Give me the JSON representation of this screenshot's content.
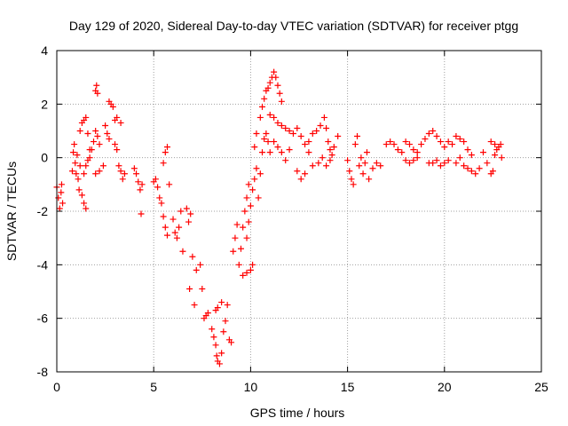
{
  "chart_data": {
    "type": "scatter",
    "title": "Day 129 of 2020, Sidereal Day-to-day VTEC variation (SDTVAR) for receiver ptgg",
    "xlabel": "GPS time / hours",
    "ylabel": "SDTVAR / TECUs",
    "xlim": [
      0,
      25
    ],
    "ylim": [
      -8,
      4
    ],
    "xticks": [
      0,
      5,
      10,
      15,
      20,
      25
    ],
    "yticks": [
      -8,
      -6,
      -4,
      -2,
      0,
      2,
      4
    ],
    "grid": true,
    "marker": "+",
    "series": [
      {
        "name": "SDTVAR",
        "color": "#ff0000",
        "points": [
          [
            0.0,
            -1.1
          ],
          [
            0.08,
            -1.5
          ],
          [
            0.15,
            -1.9
          ],
          [
            0.22,
            -1.3
          ],
          [
            0.25,
            -1.0
          ],
          [
            0.3,
            -1.7
          ],
          [
            0.8,
            -0.5
          ],
          [
            0.85,
            0.2
          ],
          [
            0.9,
            0.5
          ],
          [
            0.95,
            -0.2
          ],
          [
            1.0,
            -0.6
          ],
          [
            1.05,
            0.1
          ],
          [
            1.1,
            -0.8
          ],
          [
            1.15,
            -1.2
          ],
          [
            1.2,
            -0.3
          ],
          [
            1.3,
            -1.4
          ],
          [
            1.4,
            -1.7
          ],
          [
            1.5,
            -1.9
          ],
          [
            1.2,
            1.0
          ],
          [
            1.3,
            1.3
          ],
          [
            1.4,
            1.4
          ],
          [
            1.5,
            1.5
          ],
          [
            1.6,
            0.9
          ],
          [
            1.7,
            0.3
          ],
          [
            1.4,
            -0.6
          ],
          [
            1.5,
            -0.3
          ],
          [
            1.6,
            -0.1
          ],
          [
            1.7,
            0.0
          ],
          [
            1.8,
            0.3
          ],
          [
            1.9,
            0.6
          ],
          [
            2.0,
            2.5
          ],
          [
            2.05,
            2.7
          ],
          [
            2.1,
            2.4
          ],
          [
            2.0,
            1.0
          ],
          [
            2.1,
            0.8
          ],
          [
            2.2,
            0.5
          ],
          [
            2.0,
            -0.6
          ],
          [
            2.2,
            -0.5
          ],
          [
            2.4,
            -0.3
          ],
          [
            2.5,
            1.2
          ],
          [
            2.6,
            0.9
          ],
          [
            2.7,
            0.7
          ],
          [
            2.7,
            2.1
          ],
          [
            2.8,
            2.0
          ],
          [
            2.9,
            1.9
          ],
          [
            3.0,
            0.5
          ],
          [
            3.1,
            0.3
          ],
          [
            3.2,
            -0.3
          ],
          [
            3.0,
            1.4
          ],
          [
            3.1,
            1.5
          ],
          [
            3.3,
            1.3
          ],
          [
            3.3,
            -0.5
          ],
          [
            3.4,
            -0.8
          ],
          [
            3.5,
            -0.6
          ],
          [
            4.0,
            -0.4
          ],
          [
            4.1,
            -0.6
          ],
          [
            4.2,
            -0.9
          ],
          [
            4.3,
            -1.2
          ],
          [
            4.35,
            -2.1
          ],
          [
            4.4,
            -1.0
          ],
          [
            5.0,
            -0.9
          ],
          [
            5.1,
            -0.8
          ],
          [
            5.2,
            -1.1
          ],
          [
            5.3,
            -1.5
          ],
          [
            5.4,
            -1.7
          ],
          [
            5.5,
            -2.2
          ],
          [
            5.5,
            -0.2
          ],
          [
            5.6,
            0.2
          ],
          [
            5.7,
            0.4
          ],
          [
            5.6,
            -2.6
          ],
          [
            5.7,
            -2.9
          ],
          [
            5.8,
            -1.0
          ],
          [
            6.0,
            -2.3
          ],
          [
            6.1,
            -2.8
          ],
          [
            6.2,
            -3.0
          ],
          [
            6.3,
            -2.6
          ],
          [
            6.4,
            -2.0
          ],
          [
            6.5,
            -3.5
          ],
          [
            6.7,
            -1.9
          ],
          [
            6.8,
            -2.4
          ],
          [
            6.9,
            -2.1
          ],
          [
            6.85,
            -4.9
          ],
          [
            7.0,
            -3.7
          ],
          [
            7.1,
            -5.5
          ],
          [
            7.2,
            -4.2
          ],
          [
            7.4,
            -4.0
          ],
          [
            7.5,
            -4.9
          ],
          [
            7.6,
            -6.0
          ],
          [
            7.7,
            -5.9
          ],
          [
            7.8,
            -5.8
          ],
          [
            8.0,
            -6.4
          ],
          [
            8.1,
            -6.7
          ],
          [
            8.2,
            -7.0
          ],
          [
            8.25,
            -7.4
          ],
          [
            8.3,
            -7.6
          ],
          [
            8.4,
            -7.7
          ],
          [
            8.5,
            -7.3
          ],
          [
            8.6,
            -6.5
          ],
          [
            8.7,
            -6.1
          ],
          [
            8.8,
            -5.5
          ],
          [
            8.9,
            -6.8
          ],
          [
            9.0,
            -6.9
          ],
          [
            8.2,
            -5.7
          ],
          [
            8.3,
            -5.6
          ],
          [
            8.5,
            -5.4
          ],
          [
            9.1,
            -3.5
          ],
          [
            9.2,
            -3.0
          ],
          [
            9.3,
            -2.5
          ],
          [
            9.4,
            -4.0
          ],
          [
            9.5,
            -3.4
          ],
          [
            9.6,
            -2.6
          ],
          [
            9.7,
            -2.0
          ],
          [
            9.8,
            -1.5
          ],
          [
            9.9,
            -1.0
          ],
          [
            9.6,
            -4.4
          ],
          [
            9.8,
            -4.3
          ],
          [
            10.0,
            -4.2
          ],
          [
            10.1,
            -4.0
          ],
          [
            9.8,
            -3.0
          ],
          [
            9.9,
            -2.4
          ],
          [
            10.0,
            -1.8
          ],
          [
            10.1,
            -1.2
          ],
          [
            10.2,
            -0.8
          ],
          [
            10.3,
            -0.4
          ],
          [
            10.2,
            0.4
          ],
          [
            10.3,
            0.9
          ],
          [
            10.4,
            -1.5
          ],
          [
            10.5,
            -0.6
          ],
          [
            10.6,
            0.2
          ],
          [
            10.7,
            0.7
          ],
          [
            10.8,
            0.9
          ],
          [
            10.9,
            0.6
          ],
          [
            10.5,
            1.5
          ],
          [
            10.6,
            1.9
          ],
          [
            10.7,
            2.2
          ],
          [
            10.8,
            2.5
          ],
          [
            10.9,
            2.6
          ],
          [
            11.0,
            2.8
          ],
          [
            11.1,
            3.0
          ],
          [
            11.2,
            3.2
          ],
          [
            11.3,
            3.0
          ],
          [
            11.4,
            2.7
          ],
          [
            11.5,
            2.4
          ],
          [
            11.6,
            2.1
          ],
          [
            11.0,
            1.6
          ],
          [
            11.2,
            1.5
          ],
          [
            11.4,
            1.3
          ],
          [
            11.6,
            1.2
          ],
          [
            11.8,
            1.1
          ],
          [
            12.0,
            1.0
          ],
          [
            11.0,
            0.2
          ],
          [
            11.2,
            0.6
          ],
          [
            11.4,
            0.4
          ],
          [
            11.6,
            0.2
          ],
          [
            11.8,
            -0.1
          ],
          [
            12.0,
            0.3
          ],
          [
            12.2,
            0.9
          ],
          [
            12.4,
            1.1
          ],
          [
            12.6,
            0.8
          ],
          [
            12.8,
            0.5
          ],
          [
            13.0,
            0.2
          ],
          [
            13.2,
            -0.3
          ],
          [
            12.4,
            -0.5
          ],
          [
            12.6,
            -0.8
          ],
          [
            12.8,
            -0.6
          ],
          [
            13.0,
            0.6
          ],
          [
            13.2,
            0.9
          ],
          [
            13.4,
            1.0
          ],
          [
            13.6,
            1.2
          ],
          [
            13.8,
            1.5
          ],
          [
            13.9,
            1.1
          ],
          [
            14.0,
            0.6
          ],
          [
            14.1,
            0.3
          ],
          [
            14.2,
            0.1
          ],
          [
            13.5,
            -0.2
          ],
          [
            13.7,
            0.0
          ],
          [
            13.9,
            -0.3
          ],
          [
            14.1,
            -0.1
          ],
          [
            14.3,
            0.4
          ],
          [
            14.5,
            0.8
          ],
          [
            15.0,
            -0.1
          ],
          [
            15.1,
            -0.5
          ],
          [
            15.2,
            -0.8
          ],
          [
            15.3,
            -1.0
          ],
          [
            15.4,
            0.5
          ],
          [
            15.5,
            0.8
          ],
          [
            15.6,
            -0.3
          ],
          [
            15.7,
            0.0
          ],
          [
            15.8,
            -0.6
          ],
          [
            15.9,
            -0.2
          ],
          [
            16.0,
            0.2
          ],
          [
            16.1,
            -0.8
          ],
          [
            16.3,
            -0.4
          ],
          [
            16.5,
            -0.2
          ],
          [
            16.7,
            -0.3
          ],
          [
            17.0,
            0.5
          ],
          [
            17.2,
            0.6
          ],
          [
            17.4,
            0.5
          ],
          [
            17.6,
            0.3
          ],
          [
            17.8,
            0.2
          ],
          [
            18.0,
            0.6
          ],
          [
            18.2,
            0.5
          ],
          [
            18.4,
            0.3
          ],
          [
            18.6,
            0.2
          ],
          [
            18.0,
            -0.1
          ],
          [
            18.2,
            -0.2
          ],
          [
            18.4,
            -0.1
          ],
          [
            18.6,
            0.0
          ],
          [
            18.8,
            0.5
          ],
          [
            19.0,
            0.7
          ],
          [
            19.2,
            0.9
          ],
          [
            19.4,
            1.0
          ],
          [
            19.6,
            0.8
          ],
          [
            19.8,
            0.6
          ],
          [
            20.0,
            0.4
          ],
          [
            20.2,
            0.6
          ],
          [
            19.2,
            -0.2
          ],
          [
            19.4,
            -0.2
          ],
          [
            19.6,
            -0.1
          ],
          [
            19.8,
            -0.3
          ],
          [
            20.0,
            -0.2
          ],
          [
            20.2,
            -0.1
          ],
          [
            20.4,
            0.5
          ],
          [
            20.6,
            0.8
          ],
          [
            20.8,
            0.7
          ],
          [
            21.0,
            0.6
          ],
          [
            21.2,
            0.3
          ],
          [
            21.4,
            0.1
          ],
          [
            20.6,
            -0.2
          ],
          [
            20.8,
            0.0
          ],
          [
            21.0,
            -0.3
          ],
          [
            21.2,
            -0.4
          ],
          [
            21.4,
            -0.5
          ],
          [
            21.6,
            -0.6
          ],
          [
            21.8,
            -0.4
          ],
          [
            22.0,
            0.2
          ],
          [
            22.2,
            -0.2
          ],
          [
            22.4,
            -0.6
          ],
          [
            22.5,
            -0.5
          ],
          [
            22.6,
            0.1
          ],
          [
            22.4,
            0.6
          ],
          [
            22.6,
            0.5
          ],
          [
            22.7,
            0.3
          ],
          [
            22.8,
            0.4
          ],
          [
            22.9,
            0.5
          ],
          [
            22.95,
            0.0
          ]
        ]
      }
    ]
  }
}
